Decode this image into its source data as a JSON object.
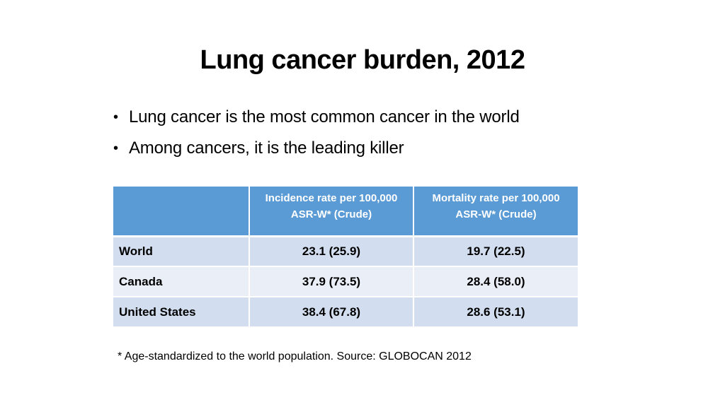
{
  "slide": {
    "title": "Lung cancer burden, 2012",
    "bullet_glyph": "•",
    "bullets": [
      "Lung cancer is the most common cancer in the world",
      "Among cancers, it is the leading killer"
    ],
    "table": {
      "headers": [
        "",
        "Incidence rate per 100,000 ASR-W* (Crude)",
        "Mortality rate per 100,000 ASR-W* (Crude)"
      ],
      "header_lines": [
        [],
        [
          "Incidence rate per 100,000",
          "ASR-W* (Crude)"
        ],
        [
          "Mortality rate per 100,000",
          "ASR-W* (Crude)"
        ]
      ],
      "rows": [
        {
          "label": "World",
          "incidence": "23.1 (25.9)",
          "mortality": "19.7 (22.5)"
        },
        {
          "label": "Canada",
          "incidence": "37.9 (73.5)",
          "mortality": "28.4 (58.0)"
        },
        {
          "label": "United States",
          "incidence": "38.4 (67.8)",
          "mortality": "28.6 (53.1)"
        }
      ]
    },
    "footnote": "* Age-standardized to the world population. Source: GLOBOCAN 2012",
    "colors": {
      "header_fill": "#5b9bd5",
      "row_dark": "#d2deef",
      "row_light": "#eaeff7"
    }
  }
}
